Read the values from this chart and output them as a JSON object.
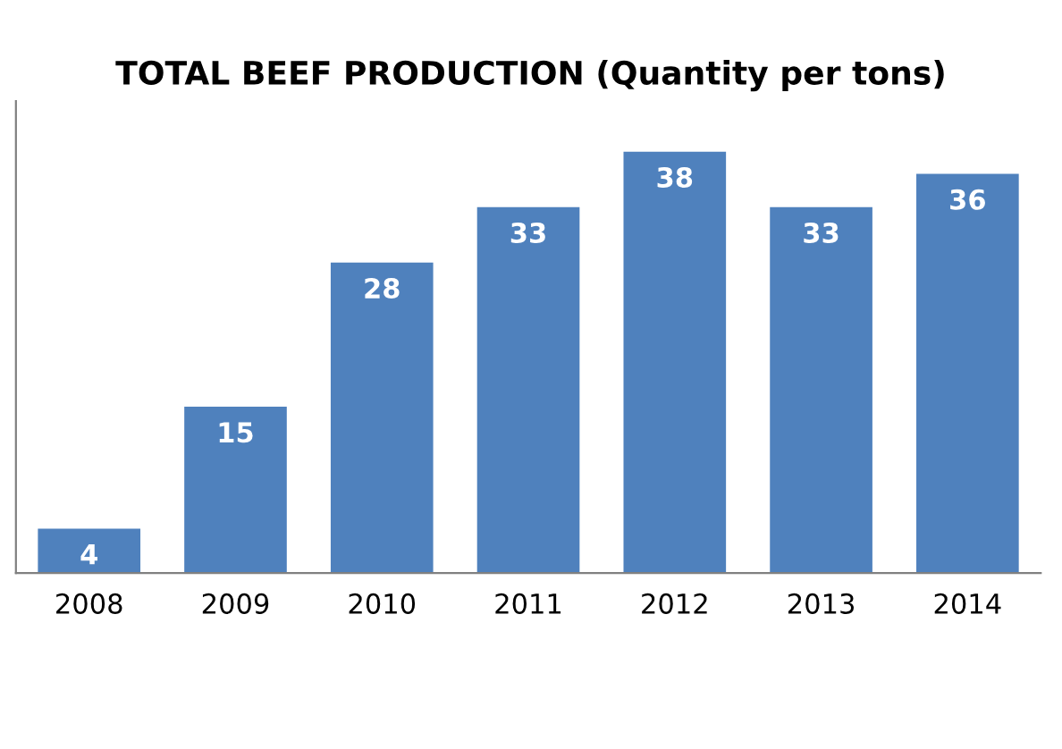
{
  "chart_data": {
    "type": "bar",
    "title": "TOTAL BEEF PRODUCTION (Quantity per tons)",
    "categories": [
      "2008",
      "2009",
      "2010",
      "2011",
      "2012",
      "2013",
      "2014"
    ],
    "values": [
      4,
      15,
      28,
      33,
      38,
      33,
      36
    ],
    "color": "#4f81bd",
    "data_labels": true,
    "grid": false,
    "legend": false
  }
}
